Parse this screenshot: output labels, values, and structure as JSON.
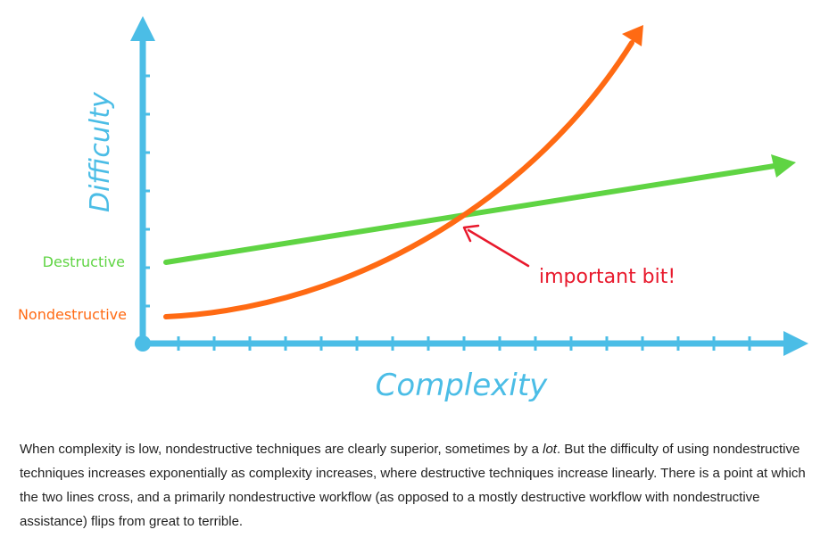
{
  "diagram": {
    "y_axis_label": "Difficulty",
    "x_axis_label": "Complexity",
    "series": [
      {
        "name": "Destructive",
        "color": "#5fd443"
      },
      {
        "name": "Nondestructive",
        "color": "#ff6a13"
      }
    ],
    "annotation": "important bit!",
    "colors": {
      "axes": "#4bbde6",
      "annotation": "#e8192c"
    }
  },
  "caption": {
    "part1": "When complexity is low, nondestructive techniques are clearly superior, sometimes by a ",
    "emphasis": "lot",
    "part2": ". But the difficulty of using nondestructive techniques increases exponentially as complexity increases, where destructive techniques increase linearly. There is a point at which the two lines cross, and a primarily nondestructive workflow (as opposed to a mostly destructive workflow with nondestructive assistance) flips from great to terrible."
  }
}
